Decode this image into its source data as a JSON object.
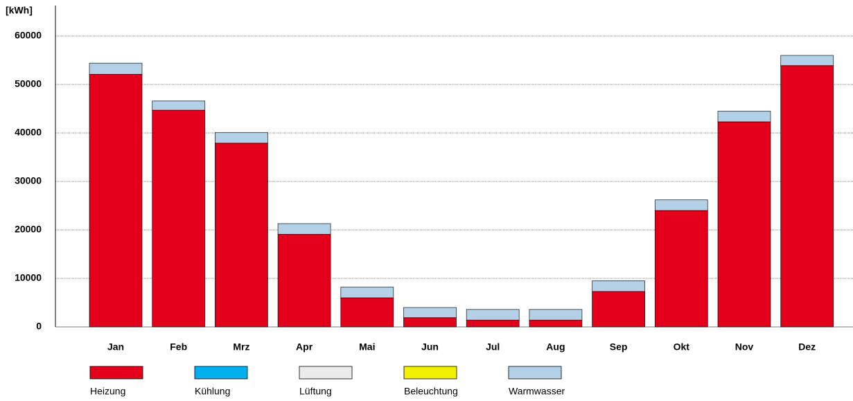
{
  "chart_data": {
    "type": "stacked_bar",
    "y_label": "[kWh]",
    "categories": [
      "Jan",
      "Feb",
      "Mrz",
      "Apr",
      "Mai",
      "Jun",
      "Jul",
      "Aug",
      "Sep",
      "Okt",
      "Nov",
      "Dez"
    ],
    "series": [
      {
        "name": "Heizung",
        "color": "#e2001a",
        "values": [
          52100,
          44700,
          37900,
          19100,
          6000,
          1900,
          1400,
          1400,
          7300,
          24000,
          42300,
          53900
        ]
      },
      {
        "name": "Kühlung",
        "color": "#00b0f0",
        "values": [
          0,
          0,
          0,
          0,
          0,
          0,
          0,
          0,
          0,
          0,
          0,
          0
        ]
      },
      {
        "name": "Lüftung",
        "color": "#ebebeb",
        "values": [
          0,
          0,
          0,
          0,
          0,
          0,
          0,
          0,
          0,
          0,
          0,
          0
        ]
      },
      {
        "name": "Beleuchtung",
        "color": "#f0f000",
        "values": [
          0,
          0,
          0,
          0,
          0,
          0,
          0,
          0,
          0,
          0,
          0,
          0
        ]
      },
      {
        "name": "Warmwasser",
        "color": "#b4d0e6",
        "values": [
          2300,
          1900,
          2200,
          2200,
          2200,
          2100,
          2200,
          2200,
          2200,
          2200,
          2200,
          2100
        ]
      }
    ],
    "ylim": [
      0,
      60000
    ],
    "yticks": [
      0,
      10000,
      20000,
      30000,
      40000,
      50000,
      60000
    ],
    "grid": true
  }
}
